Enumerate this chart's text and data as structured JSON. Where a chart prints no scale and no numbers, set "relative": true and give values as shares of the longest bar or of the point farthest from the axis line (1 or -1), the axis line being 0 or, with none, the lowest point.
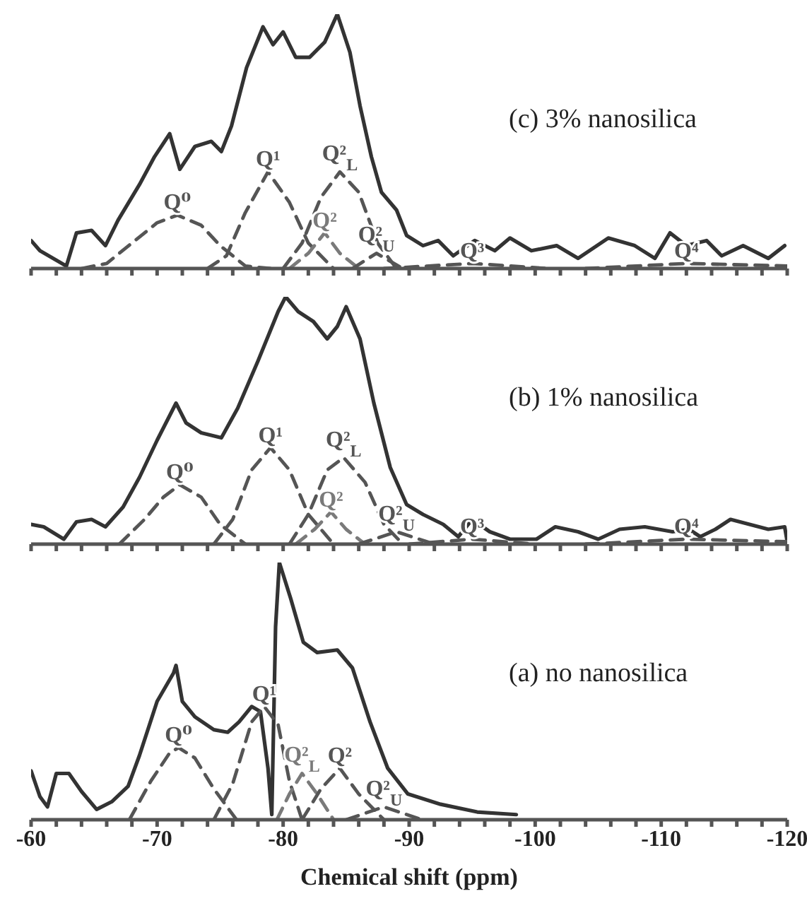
{
  "chart_data": [
    {
      "type": "line",
      "title": "(c) 3% nanosilica",
      "relative": true,
      "xlim": [
        -60,
        -120
      ],
      "tick_labels": false,
      "xticks": [
        -60,
        {
          "value": -62,
          "label": null
        },
        {
          "value": -64,
          "label": null
        },
        {
          "value": -66,
          "label": null
        },
        {
          "value": -68,
          "label": null
        },
        -70,
        {
          "value": -72,
          "label": null
        },
        {
          "value": -74,
          "label": null
        },
        {
          "value": -76,
          "label": null
        },
        {
          "value": -78,
          "label": null
        },
        -80,
        {
          "value": -82,
          "label": null
        },
        {
          "value": -84,
          "label": null
        },
        {
          "value": -86,
          "label": null
        },
        {
          "value": -88,
          "label": null
        },
        -90,
        {
          "value": -92,
          "label": null
        },
        {
          "value": -94,
          "label": null
        },
        {
          "value": -96,
          "label": null
        },
        {
          "value": -98,
          "label": null
        },
        -100,
        {
          "value": -102,
          "label": null
        },
        {
          "value": -104,
          "label": null
        },
        {
          "value": -106,
          "label": null
        },
        {
          "value": -108,
          "label": null
        },
        -110,
        {
          "value": -112,
          "label": null
        },
        {
          "value": -114,
          "label": null
        },
        {
          "value": -116,
          "label": null
        },
        {
          "value": -118,
          "label": null
        },
        -120
      ],
      "series": [
        {
          "color": "#333333",
          "line_style": "solid",
          "x": [
            -60,
            -60.7,
            -62.8,
            -63.6,
            -64.8,
            -65.9,
            -66.9,
            -68.6,
            -69.8,
            -71,
            -71.8,
            -73,
            -74.3,
            -75.1,
            -75.9,
            -77.1,
            -78.4,
            -79.2,
            -80,
            -81,
            -82.1,
            -83.3,
            -84.3,
            -85.3,
            -86.1,
            -87,
            -87.8,
            -89,
            -89.8,
            -91.1,
            -92.3,
            -93.5,
            -95.2,
            -96.8,
            -98,
            -99.7,
            -101.7,
            -103.4,
            -105.8,
            -107.9,
            -109.5,
            -110.7,
            -112,
            -113.6,
            -114.8,
            -116.5,
            -118.5,
            -119.8
          ],
          "values": [
            0.11,
            0.07,
            0.01,
            0.14,
            0.15,
            0.09,
            0.19,
            0.33,
            0.44,
            0.53,
            0.39,
            0.48,
            0.5,
            0.46,
            0.56,
            0.79,
            0.95,
            0.88,
            0.93,
            0.83,
            0.83,
            0.89,
            1.0,
            0.85,
            0.64,
            0.44,
            0.3,
            0.23,
            0.13,
            0.09,
            0.11,
            0.05,
            0.11,
            0.07,
            0.12,
            0.07,
            0.09,
            0.04,
            0.12,
            0.09,
            0.04,
            0.14,
            0.09,
            0.11,
            0.05,
            0.09,
            0.04,
            0.09
          ]
        },
        {
          "name": "Q⁰",
          "color": "#555555",
          "line_style": "dashed",
          "x": [
            -64,
            -66,
            -68,
            -70,
            -71.6,
            -73.5,
            -75,
            -77,
            -79
          ],
          "values": [
            0,
            0.02,
            0.1,
            0.18,
            0.21,
            0.17,
            0.09,
            0.01,
            0
          ]
        },
        {
          "name": "Q¹",
          "color": "#555555",
          "line_style": "dashed",
          "x": [
            -74,
            -75.5,
            -77,
            -78.8,
            -80.5,
            -82,
            -84
          ],
          "values": [
            0,
            0.05,
            0.22,
            0.38,
            0.26,
            0.1,
            0
          ]
        },
        {
          "name": "Q²$_{L}$",
          "color": "#555555",
          "line_style": "dashed",
          "x": [
            -80,
            -81.5,
            -83,
            -84.5,
            -86,
            -87.5,
            -89
          ],
          "values": [
            0,
            0.1,
            0.28,
            0.38,
            0.3,
            0.1,
            0
          ]
        },
        {
          "name": "Q²",
          "color": "#7a7a7a",
          "line_style": "dashed",
          "x": [
            -80.5,
            -82,
            -83.3,
            -84.5,
            -86
          ],
          "values": [
            0,
            0.06,
            0.14,
            0.06,
            0
          ]
        },
        {
          "name": "Q²$_{U}$",
          "color": "#555555",
          "line_style": "dashed",
          "x": [
            -85.5,
            -87.4,
            -89.5
          ],
          "values": [
            0,
            0.06,
            0
          ]
        },
        {
          "name": "Q³",
          "color": "#555555",
          "line_style": "dashed",
          "x": [
            -88,
            -95,
            -101
          ],
          "values": [
            0,
            0.02,
            0
          ]
        },
        {
          "name": "Q⁴",
          "color": "#555555",
          "line_style": "dashed",
          "x": [
            -104,
            -112,
            -120
          ],
          "values": [
            0,
            0.02,
            0.01
          ]
        }
      ]
    },
    {
      "type": "line",
      "title": "(b) 1% nanosilica",
      "relative": true,
      "xlim": [
        -60,
        -120
      ],
      "tick_labels": false,
      "xticks": [
        -60,
        {
          "value": -62,
          "label": null
        },
        {
          "value": -64,
          "label": null
        },
        {
          "value": -66,
          "label": null
        },
        {
          "value": -68,
          "label": null
        },
        -70,
        {
          "value": -72,
          "label": null
        },
        {
          "value": -74,
          "label": null
        },
        {
          "value": -76,
          "label": null
        },
        {
          "value": -78,
          "label": null
        },
        -80,
        {
          "value": -82,
          "label": null
        },
        {
          "value": -84,
          "label": null
        },
        {
          "value": -86,
          "label": null
        },
        {
          "value": -88,
          "label": null
        },
        -90,
        {
          "value": -92,
          "label": null
        },
        {
          "value": -94,
          "label": null
        },
        {
          "value": -96,
          "label": null
        },
        {
          "value": -98,
          "label": null
        },
        -100,
        {
          "value": -102,
          "label": null
        },
        {
          "value": -104,
          "label": null
        },
        {
          "value": -106,
          "label": null
        },
        {
          "value": -108,
          "label": null
        },
        -110,
        {
          "value": -112,
          "label": null
        },
        {
          "value": -114,
          "label": null
        },
        {
          "value": -116,
          "label": null
        },
        {
          "value": -118,
          "label": null
        },
        -120
      ],
      "series": [
        {
          "color": "#333333",
          "line_style": "solid",
          "x": [
            -60,
            -61,
            -62.6,
            -63.6,
            -64.8,
            -65.9,
            -67.3,
            -68.6,
            -70,
            -71.5,
            -72.3,
            -73.5,
            -75.1,
            -76.4,
            -78,
            -79.6,
            -80.2,
            -81.2,
            -82.4,
            -83.5,
            -84.3,
            -85,
            -86.1,
            -87.2,
            -88.5,
            -89.8,
            -91.1,
            -92.7,
            -93.9,
            -95,
            -96.4,
            -98,
            -100.1,
            -101.6,
            -103.4,
            -105,
            -106.7,
            -108.7,
            -110.9,
            -112.2,
            -113.1,
            -114.3,
            -115.5,
            -117,
            -118.5,
            -119.8,
            -120
          ],
          "values": [
            0.08,
            0.07,
            0.02,
            0.09,
            0.1,
            0.07,
            0.15,
            0.27,
            0.42,
            0.57,
            0.49,
            0.45,
            0.43,
            0.55,
            0.74,
            0.94,
            1.0,
            0.94,
            0.9,
            0.83,
            0.88,
            0.96,
            0.83,
            0.57,
            0.31,
            0.16,
            0.12,
            0.08,
            0.03,
            0.1,
            0.05,
            0.02,
            0.02,
            0.07,
            0.05,
            0.02,
            0.06,
            0.07,
            0.05,
            0.06,
            0.03,
            0.06,
            0.1,
            0.08,
            0.06,
            0.07,
            0.01
          ]
        },
        {
          "name": "Q⁰",
          "color": "#555555",
          "line_style": "dashed",
          "x": [
            -67,
            -69,
            -70.5,
            -71.8,
            -73.5,
            -75,
            -77
          ],
          "values": [
            0,
            0.1,
            0.19,
            0.24,
            0.19,
            0.08,
            0
          ]
        },
        {
          "name": "Q¹",
          "color": "#555555",
          "line_style": "dashed",
          "x": [
            -74.5,
            -76,
            -77.5,
            -79,
            -80.5,
            -82,
            -84
          ],
          "values": [
            0,
            0.1,
            0.3,
            0.39,
            0.3,
            0.12,
            0
          ]
        },
        {
          "name": "Q²$_{L}$",
          "color": "#555555",
          "line_style": "dashed",
          "x": [
            -80.5,
            -82,
            -83.5,
            -84.8,
            -86.5,
            -88,
            -89.5
          ],
          "values": [
            0,
            0.12,
            0.3,
            0.35,
            0.25,
            0.08,
            0
          ]
        },
        {
          "name": "Q²",
          "color": "#7a7a7a",
          "line_style": "dashed",
          "x": [
            -81,
            -82.5,
            -83.8,
            -85,
            -86.5
          ],
          "values": [
            0,
            0.06,
            0.13,
            0.06,
            0
          ]
        },
        {
          "name": "Q²$_{U}$",
          "color": "#555555",
          "line_style": "dashed",
          "x": [
            -86,
            -89,
            -92
          ],
          "values": [
            0,
            0.05,
            0
          ]
        },
        {
          "name": "Q³",
          "color": "#555555",
          "line_style": "dashed",
          "x": [
            -90,
            -95,
            -100
          ],
          "values": [
            0,
            0.02,
            0
          ]
        },
        {
          "name": "Q⁴",
          "color": "#555555",
          "line_style": "dashed",
          "x": [
            -104,
            -112,
            -120
          ],
          "values": [
            0,
            0.02,
            0.01
          ]
        }
      ]
    },
    {
      "type": "line",
      "title": "(a) no nanosilica",
      "xlabel": "Chemical shift (ppm)",
      "relative": true,
      "xlim": [
        -60,
        -120
      ],
      "tick_labels": "x",
      "xticks": [
        -60,
        {
          "value": -62,
          "label": null
        },
        {
          "value": -64,
          "label": null
        },
        {
          "value": -66,
          "label": null
        },
        {
          "value": -68,
          "label": null
        },
        -70,
        {
          "value": -72,
          "label": null
        },
        {
          "value": -74,
          "label": null
        },
        {
          "value": -76,
          "label": null
        },
        {
          "value": -78,
          "label": null
        },
        -80,
        {
          "value": -82,
          "label": null
        },
        {
          "value": -84,
          "label": null
        },
        {
          "value": -86,
          "label": null
        },
        {
          "value": -88,
          "label": null
        },
        -90,
        {
          "value": -92,
          "label": null
        },
        {
          "value": -94,
          "label": null
        },
        {
          "value": -96,
          "label": null
        },
        {
          "value": -98,
          "label": null
        },
        -100,
        {
          "value": -102,
          "label": null
        },
        {
          "value": -104,
          "label": null
        },
        {
          "value": -106,
          "label": null
        },
        {
          "value": -108,
          "label": null
        },
        -110,
        {
          "value": -112,
          "label": null
        },
        {
          "value": -114,
          "label": null
        },
        {
          "value": -116,
          "label": null
        },
        {
          "value": -118,
          "label": null
        },
        -120
      ],
      "series": [
        {
          "color": "#333333",
          "line_style": "solid",
          "x": [
            -60,
            -60.7,
            -61.3,
            -62,
            -63,
            -64,
            -65.2,
            -66.4,
            -67.7,
            -68.6,
            -70,
            -71.3,
            -71.5,
            -72,
            -73,
            -74.5,
            -75.6,
            -76.5,
            -77.5,
            -78.2,
            -78.8,
            -79.1,
            -79.4,
            -79.7,
            -80.6,
            -81.6,
            -82.7,
            -84.3,
            -85.5,
            -86.9,
            -88.3,
            -89.9,
            -92.5,
            -95.4,
            -98.5
          ],
          "values": [
            0.19,
            0.09,
            0.05,
            0.18,
            0.18,
            0.11,
            0.04,
            0.07,
            0.13,
            0.25,
            0.46,
            0.57,
            0.6,
            0.46,
            0.4,
            0.35,
            0.34,
            0.38,
            0.44,
            0.42,
            0.2,
            0.02,
            0.75,
            1.0,
            0.86,
            0.69,
            0.65,
            0.66,
            0.59,
            0.38,
            0.2,
            0.1,
            0.06,
            0.03,
            0.02
          ]
        },
        {
          "name": "Q⁰",
          "color": "#555555",
          "line_style": "dashed",
          "x": [
            -67.8,
            -69.5,
            -71,
            -71.7,
            -73,
            -74.5,
            -76.3
          ],
          "values": [
            0,
            0.15,
            0.26,
            0.28,
            0.24,
            0.12,
            0
          ]
        },
        {
          "name": "Q¹",
          "color": "#555555",
          "line_style": "dashed",
          "x": [
            -74.5,
            -76,
            -77.5,
            -78.5,
            -79.6,
            -80.5,
            -81.5
          ],
          "values": [
            0,
            0.14,
            0.38,
            0.44,
            0.37,
            0.15,
            0
          ]
        },
        {
          "name": "Q²$_{L}$",
          "color": "#7a7a7a",
          "line_style": "dashed",
          "x": [
            -79.5,
            -80.5,
            -81.5,
            -82.7,
            -84
          ],
          "values": [
            0,
            0.1,
            0.18,
            0.1,
            0
          ]
        },
        {
          "name": "Q²",
          "color": "#555555",
          "line_style": "dashed",
          "x": [
            -81.5,
            -83,
            -84.5,
            -86,
            -88
          ],
          "values": [
            0,
            0.12,
            0.2,
            0.1,
            0
          ]
        },
        {
          "name": "Q²$_{U}$",
          "color": "#555555",
          "line_style": "dashed",
          "x": [
            -85,
            -88,
            -91
          ],
          "values": [
            0,
            0.05,
            0
          ]
        }
      ]
    }
  ]
}
